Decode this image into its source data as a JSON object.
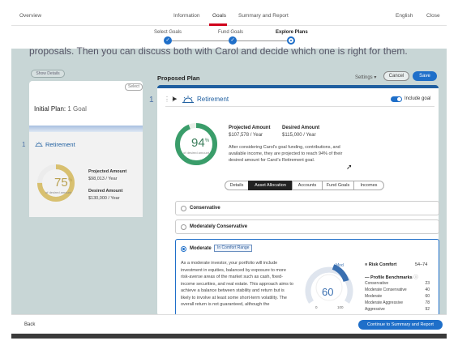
{
  "topnav": {
    "overview": "Overview",
    "tabs": [
      "Information",
      "Goals",
      "Summary and Report"
    ],
    "language": "English",
    "close": "Close"
  },
  "stepper": {
    "steps": [
      "Select Goals",
      "Fund Goals",
      "Explore Plans"
    ]
  },
  "banner_text": "proposals. Then you can discuss both with Carol and decide which one is right for them.",
  "left_panel": {
    "show_details": "Show Details",
    "select": "Select",
    "initial_plan_title": "Initial Plan:",
    "initial_plan_count": "1 Goal",
    "goal_index": "1",
    "goal_name": "Retirement",
    "percent": "75",
    "percent_sub": "of desired amount",
    "percent_fraction": 0.75,
    "projected_label": "Projected Amount",
    "projected_value": "$98,013 / Year",
    "desired_label": "Desired Amount",
    "desired_value": "$130,000 / Year"
  },
  "proposed": {
    "title": "Proposed Plan",
    "settings": "Settings",
    "cancel": "Cancel",
    "save": "Save",
    "goal_index": "1",
    "goal_name": "Retirement",
    "include_goal": "Include goal",
    "percent": "94",
    "percent_sub": "of desired amount",
    "percent_fraction": 0.94,
    "projected_label": "Projected Amount",
    "projected_value": "$107,578 / Year",
    "desired_label": "Desired Amount",
    "desired_value": "$115,000 / Year",
    "description": "After considering Carol's goal funding, contributions, and available income, they are projected to reach 94% of their desired amount for Carol's Retirement goal.",
    "tabs": [
      "Details",
      "Asset Allocation",
      "Accounts",
      "Fund Goals",
      "Incomes"
    ],
    "active_tab": "Asset Allocation"
  },
  "allocation": {
    "options": [
      "Conservative",
      "Moderately Conservative",
      "Moderate"
    ],
    "selected": "Moderate",
    "badge": "In Comfort Range",
    "moderate_text": "As a moderate investor, your portfolio will include investment in equities, balanced by exposure to more risk-averse areas of the market such as cash, fixed-income securities, and real estate. This approach aims to achieve a balance between stability and return but is likely to involve at least some short-term volatility. The overall return is not guaranteed, although the",
    "gauge_value": "60",
    "gauge_min": "0",
    "gauge_max": "100",
    "gauge_tag": "Mod",
    "risk_comfort_label": "Risk Comfort",
    "risk_comfort_value": "54–74",
    "profile_benchmarks_label": "Profile Benchmarks",
    "benchmarks": [
      {
        "name": "Conservative",
        "value": "23"
      },
      {
        "name": "Moderate Conservative",
        "value": "40"
      },
      {
        "name": "Moderate",
        "value": "60"
      },
      {
        "name": "Moderate Aggressive",
        "value": "78"
      },
      {
        "name": "Aggressive",
        "value": "92"
      }
    ]
  },
  "bottom": {
    "back": "Back",
    "continue": "Continue to Summary and Report"
  },
  "colors": {
    "accent": "#1f6fc9",
    "active_tab_underline": "#d0021b",
    "green_gauge": "#3a9d6a",
    "gold_gauge": "#d8c070"
  }
}
